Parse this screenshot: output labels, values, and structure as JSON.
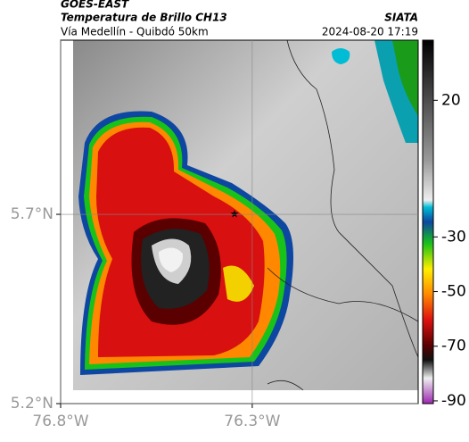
{
  "header": {
    "title": "GOES-EAST",
    "subtitle": "Temperatura de Brillo CH13",
    "location": "Vía Medellín - Quibdó 50km",
    "source": "SIATA",
    "datetime": "2024-08-20 17:19"
  },
  "map": {
    "xlim": [
      -76.8,
      -75.867
    ],
    "ylim": [
      5.2,
      6.16
    ],
    "xticks": [
      {
        "value": -76.8,
        "label": "76.8°W"
      },
      {
        "value": -76.3,
        "label": "76.3°W"
      }
    ],
    "yticks": [
      {
        "value": 5.2,
        "label": "5.2°N"
      },
      {
        "value": 5.7,
        "label": "5.7°N"
      }
    ],
    "grid": true
  },
  "colorbar": {
    "clim": [
      -91,
      42
    ],
    "ticks": [
      20,
      -30,
      -50,
      -70,
      -90
    ]
  }
}
